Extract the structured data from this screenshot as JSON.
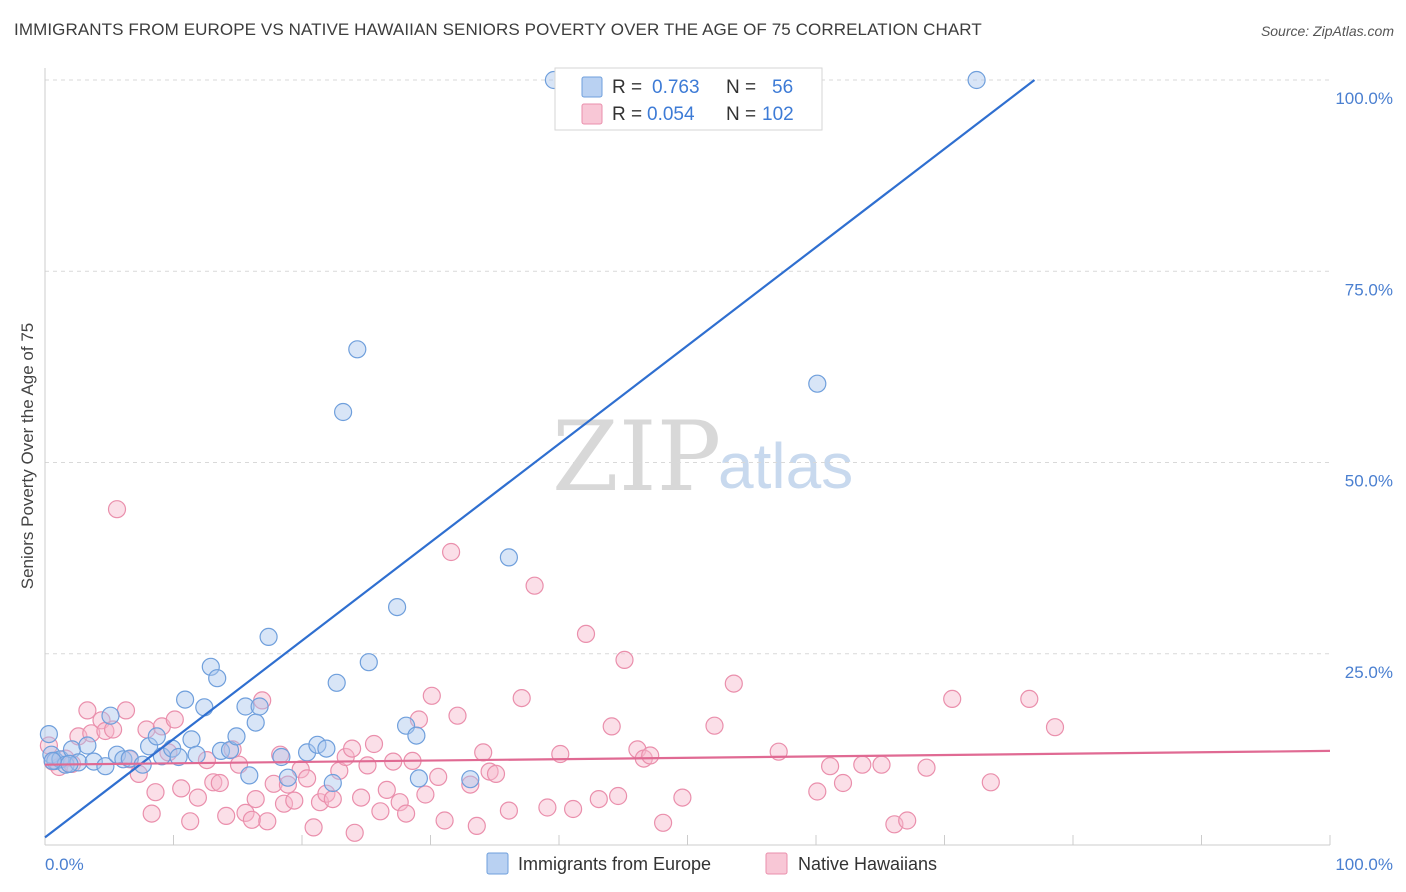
{
  "title": "IMMIGRANTS FROM EUROPE VS NATIVE HAWAIIAN SENIORS POVERTY OVER THE AGE OF 75 CORRELATION CHART",
  "source": "Source: ZipAtlas.com",
  "watermark": {
    "zip": "ZIP",
    "atlas": "atlas"
  },
  "colors": {
    "blue_fill": "#a9c6ee",
    "blue_stroke": "#6f9fdc",
    "blue_line": "#2f6fd0",
    "pink_fill": "#f6b8cb",
    "pink_stroke": "#ea8fac",
    "pink_line": "#e06a93",
    "grid": "#d9d9d9",
    "axis_tick_text": "#4a7fd0"
  },
  "legend": {
    "rows": [
      {
        "r_label": "R =",
        "r_value": "0.763",
        "n_label": "N =",
        "n_value": "56"
      },
      {
        "r_label": "R =",
        "r_value": "0.054",
        "n_label": "N =",
        "n_value": "102"
      }
    ]
  },
  "bottom_legend": {
    "series1": "Immigrants from Europe",
    "series2": "Native Hawaiians"
  },
  "chart_data": {
    "type": "scatter",
    "title": "IMMIGRANTS FROM EUROPE VS NATIVE HAWAIIAN SENIORS POVERTY OVER THE AGE OF 75 CORRELATION CHART",
    "xlabel": "",
    "ylabel": "Seniors Poverty Over the Age of 75",
    "xlim": [
      0,
      100
    ],
    "ylim": [
      0,
      100
    ],
    "x_tick_labels": [
      "0.0%",
      "100.0%"
    ],
    "y_ticks": [
      25,
      50,
      75,
      100
    ],
    "y_tick_labels": [
      "25.0%",
      "50.0%",
      "75.0%",
      "100.0%"
    ],
    "grid": true,
    "legend_position": "top-center",
    "series": [
      {
        "name": "Immigrants from Europe",
        "R": 0.763,
        "N": 56,
        "trend": {
          "x": [
            0,
            77
          ],
          "y": [
            1,
            100
          ]
        },
        "points": [
          [
            0.3,
            14.5
          ],
          [
            0.5,
            11.8
          ],
          [
            0.8,
            11
          ],
          [
            1.2,
            11.2
          ],
          [
            1.6,
            10.5
          ],
          [
            2.1,
            12.5
          ],
          [
            2.6,
            10.8
          ],
          [
            3.3,
            13
          ],
          [
            3.8,
            10.9
          ],
          [
            4.7,
            10.3
          ],
          [
            5.1,
            16.9
          ],
          [
            5.6,
            11.8
          ],
          [
            6.1,
            11.2
          ],
          [
            6.6,
            11.3
          ],
          [
            7.6,
            10.5
          ],
          [
            8.1,
            12.9
          ],
          [
            8.7,
            14.2
          ],
          [
            9.1,
            11.6
          ],
          [
            9.9,
            12.6
          ],
          [
            10.4,
            11.5
          ],
          [
            10.9,
            19
          ],
          [
            11.4,
            13.8
          ],
          [
            11.8,
            11.8
          ],
          [
            12.4,
            18
          ],
          [
            12.9,
            23.3
          ],
          [
            13.4,
            21.8
          ],
          [
            13.7,
            12.3
          ],
          [
            14.4,
            12.4
          ],
          [
            14.9,
            14.2
          ],
          [
            15.6,
            18.1
          ],
          [
            15.9,
            9.1
          ],
          [
            16.4,
            16
          ],
          [
            16.7,
            18.1
          ],
          [
            17.4,
            27.2
          ],
          [
            18.4,
            11.5
          ],
          [
            18.9,
            8.8
          ],
          [
            20.4,
            12.1
          ],
          [
            21.2,
            13.1
          ],
          [
            21.9,
            12.6
          ],
          [
            22.4,
            8.1
          ],
          [
            22.7,
            21.2
          ],
          [
            23.2,
            56.6
          ],
          [
            24.3,
            64.8
          ],
          [
            25.2,
            23.9
          ],
          [
            27.4,
            31.1
          ],
          [
            28.1,
            15.6
          ],
          [
            28.9,
            14.3
          ],
          [
            29.1,
            8.7
          ],
          [
            33.1,
            8.6
          ],
          [
            36.1,
            37.6
          ],
          [
            39.6,
            100
          ],
          [
            40.6,
            100
          ],
          [
            60.1,
            60.3
          ],
          [
            72.5,
            100
          ],
          [
            0.6,
            11
          ],
          [
            1.9,
            10.6
          ]
        ]
      },
      {
        "name": "Native Hawaiians",
        "R": 0.054,
        "N": 102,
        "trend": {
          "x": [
            0,
            100
          ],
          "y": [
            10.5,
            12.3
          ]
        },
        "points": [
          [
            0.3,
            13
          ],
          [
            0.6,
            10.9
          ],
          [
            1.1,
            10.2
          ],
          [
            1.6,
            11.3
          ],
          [
            2.1,
            10.6
          ],
          [
            2.6,
            14.2
          ],
          [
            3.3,
            17.6
          ],
          [
            3.6,
            14.6
          ],
          [
            4.4,
            16.3
          ],
          [
            4.7,
            14.9
          ],
          [
            5.3,
            15.1
          ],
          [
            5.6,
            43.9
          ],
          [
            6.3,
            17.6
          ],
          [
            6.6,
            11.2
          ],
          [
            7.3,
            9.3
          ],
          [
            7.9,
            15.1
          ],
          [
            8.3,
            4.1
          ],
          [
            8.6,
            6.9
          ],
          [
            9.1,
            15.5
          ],
          [
            9.6,
            12.1
          ],
          [
            10.1,
            16.4
          ],
          [
            10.6,
            7.4
          ],
          [
            11.3,
            3.1
          ],
          [
            11.9,
            6.2
          ],
          [
            12.6,
            11.1
          ],
          [
            13.1,
            8.2
          ],
          [
            13.6,
            8.1
          ],
          [
            14.1,
            3.8
          ],
          [
            14.6,
            12.5
          ],
          [
            15.1,
            10.5
          ],
          [
            15.6,
            4.2
          ],
          [
            16.1,
            3.3
          ],
          [
            16.4,
            6
          ],
          [
            16.9,
            18.9
          ],
          [
            17.3,
            3.1
          ],
          [
            17.8,
            8
          ],
          [
            18.3,
            11.8
          ],
          [
            18.6,
            5.4
          ],
          [
            18.9,
            7.9
          ],
          [
            19.4,
            5.8
          ],
          [
            19.9,
            9.9
          ],
          [
            20.4,
            8.7
          ],
          [
            20.9,
            2.3
          ],
          [
            21.4,
            5.6
          ],
          [
            21.9,
            6.7
          ],
          [
            22.4,
            6
          ],
          [
            22.9,
            9.7
          ],
          [
            23.4,
            11.5
          ],
          [
            23.9,
            12.6
          ],
          [
            24.1,
            1.6
          ],
          [
            24.6,
            6.2
          ],
          [
            25.1,
            10.4
          ],
          [
            25.6,
            13.2
          ],
          [
            26.1,
            4.4
          ],
          [
            26.6,
            7.2
          ],
          [
            27.1,
            10.9
          ],
          [
            27.6,
            5.6
          ],
          [
            28.1,
            4.1
          ],
          [
            28.6,
            11
          ],
          [
            29.1,
            16.4
          ],
          [
            29.6,
            6.6
          ],
          [
            30.1,
            19.5
          ],
          [
            30.6,
            8.9
          ],
          [
            31.1,
            3.2
          ],
          [
            31.6,
            38.3
          ],
          [
            32.1,
            16.9
          ],
          [
            33.1,
            7.9
          ],
          [
            33.6,
            2.5
          ],
          [
            34.1,
            12.1
          ],
          [
            34.6,
            9.6
          ],
          [
            35.1,
            9.3
          ],
          [
            36.1,
            4.5
          ],
          [
            37.1,
            19.2
          ],
          [
            38.1,
            33.9
          ],
          [
            39.1,
            4.9
          ],
          [
            40.1,
            11.9
          ],
          [
            41.1,
            4.7
          ],
          [
            42.1,
            27.6
          ],
          [
            43.1,
            6
          ],
          [
            44.1,
            15.5
          ],
          [
            44.6,
            6.4
          ],
          [
            45.1,
            24.2
          ],
          [
            46.1,
            12.5
          ],
          [
            46.6,
            11.3
          ],
          [
            47.1,
            11.7
          ],
          [
            48.1,
            2.9
          ],
          [
            49.6,
            6.2
          ],
          [
            52.1,
            15.6
          ],
          [
            53.6,
            21.1
          ],
          [
            57.1,
            12.2
          ],
          [
            60.1,
            7
          ],
          [
            61.1,
            10.3
          ],
          [
            62.1,
            8.1
          ],
          [
            63.6,
            10.5
          ],
          [
            65.1,
            10.5
          ],
          [
            66.1,
            2.7
          ],
          [
            67.1,
            3.2
          ],
          [
            68.6,
            10.1
          ],
          [
            70.6,
            19.1
          ],
          [
            73.6,
            8.2
          ],
          [
            76.6,
            19.1
          ],
          [
            78.6,
            15.4
          ]
        ]
      }
    ]
  }
}
